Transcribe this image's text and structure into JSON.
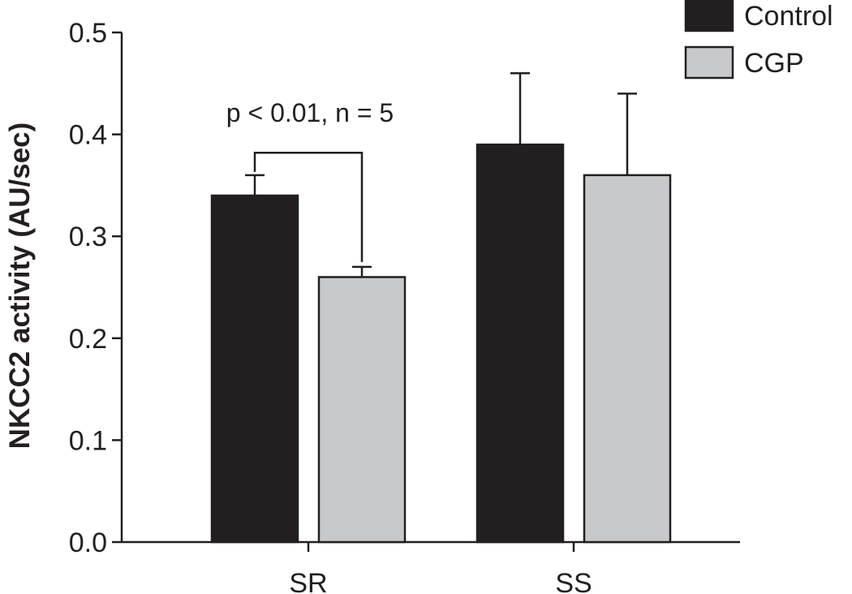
{
  "chart_data": {
    "type": "bar",
    "title": "",
    "xlabel": "",
    "ylabel": "NKCC2 activity (AU/sec)",
    "ylim": [
      0,
      0.5
    ],
    "yticks": [
      "0.0",
      "0.1",
      "0.2",
      "0.3",
      "0.4",
      "0.5"
    ],
    "ytick_values": [
      0,
      0.1,
      0.2,
      0.3,
      0.4,
      0.5
    ],
    "categories": [
      "SR",
      "SS"
    ],
    "series": [
      {
        "name": "Control",
        "color": "#231f20",
        "values": [
          0.34,
          0.39
        ],
        "errors": [
          0.02,
          0.07
        ]
      },
      {
        "name": "CGP",
        "color": "#c8c9cb",
        "values": [
          0.26,
          0.36
        ],
        "errors": [
          0.01,
          0.08
        ]
      }
    ],
    "legend_position": "top-right",
    "grid": false,
    "annotation": {
      "text": "p < 0.01, n = 5",
      "category": "SR",
      "bracket_y": 0.382
    }
  }
}
